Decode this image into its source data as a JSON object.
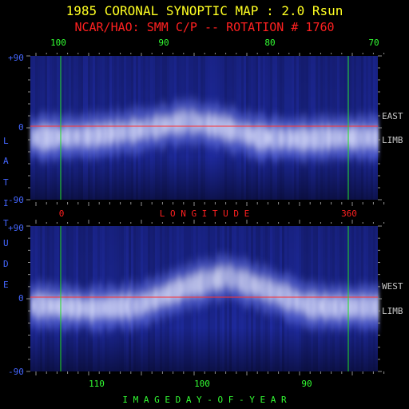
{
  "title": "1985 CORONAL SYNOPTIC MAP : 2.0 Rsun",
  "subtitle": "NCAR/HAO: SMM C/P -- ROTATION # 1760",
  "colors": {
    "background": "#000000",
    "title": "#ffff22",
    "subtitle": "#ff2020",
    "green_text": "#33ff33",
    "red_text": "#ff2020",
    "blue_text": "#4466ff",
    "white_text": "#c8c8c8",
    "equator_line": "#ff3030",
    "marker_line": "#22dd22",
    "map_dark": "#05052e",
    "map_mid": "#2a35b0",
    "map_bright": "#e4e8ff"
  },
  "top_axis": {
    "label_ticks": [
      "100",
      "90",
      "80",
      "70"
    ]
  },
  "middle_axis": {
    "label_zero": "0",
    "label_360": "360",
    "label": "L O N G I T U D E"
  },
  "bottom_axis": {
    "label_ticks": [
      "110",
      "100",
      "90"
    ],
    "label": "I M A G E   D A Y - O F - Y E A R"
  },
  "left_axis": {
    "label_letters": [
      "L",
      "A",
      "T",
      "I",
      "T",
      "U",
      "D",
      "E"
    ],
    "tick_labels": [
      "+90",
      "0",
      "-90"
    ]
  },
  "panels": {
    "top": {
      "limb_label_1": "EAST",
      "limb_label_2": "LIMB"
    },
    "bottom": {
      "limb_label_1": "WEST",
      "limb_label_2": "LIMB"
    }
  },
  "chart_data": [
    {
      "type": "heatmap",
      "panel": "EAST LIMB",
      "xlabel": "LONGITUDE",
      "ylabel": "LATITUDE",
      "xlim": [
        0,
        360
      ],
      "ylim": [
        -90,
        90
      ],
      "top_axis_ticks": [
        100,
        90,
        80,
        70
      ],
      "bright_band_center_lat": [
        {
          "lon": 0,
          "lat": -12
        },
        {
          "lon": 60,
          "lat": -10
        },
        {
          "lon": 120,
          "lat": -3
        },
        {
          "lon": 180,
          "lat": 8
        },
        {
          "lon": 220,
          "lat": 2
        },
        {
          "lon": 270,
          "lat": -12
        },
        {
          "lon": 330,
          "lat": -14
        },
        {
          "lon": 360,
          "lat": -12
        }
      ],
      "equator_line_lat": 0,
      "marker_lines_lon": [
        0,
        360
      ]
    },
    {
      "type": "heatmap",
      "panel": "WEST LIMB",
      "xlabel": "IMAGE DAY-OF-YEAR",
      "ylabel": "LATITUDE",
      "xlim": [
        0,
        360
      ],
      "ylim": [
        -90,
        90
      ],
      "bottom_axis_ticks": [
        110,
        100,
        90
      ],
      "bright_band_center_lat": [
        {
          "lon": 0,
          "lat": -8
        },
        {
          "lon": 60,
          "lat": -12
        },
        {
          "lon": 120,
          "lat": -8
        },
        {
          "lon": 180,
          "lat": 15
        },
        {
          "lon": 230,
          "lat": 28
        },
        {
          "lon": 290,
          "lat": 8
        },
        {
          "lon": 330,
          "lat": -8
        },
        {
          "lon": 360,
          "lat": -10
        }
      ],
      "equator_line_lat": 0,
      "marker_lines_lon": [
        0,
        360
      ]
    }
  ]
}
